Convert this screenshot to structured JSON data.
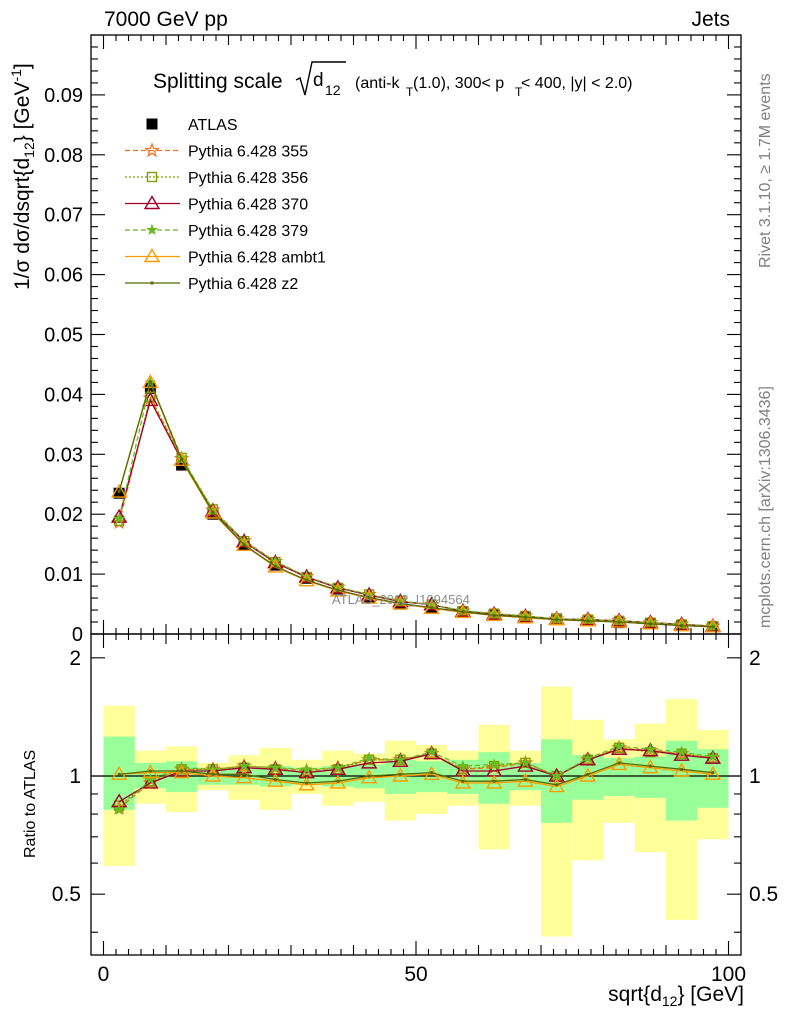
{
  "header": {
    "left": "7000 GeV pp",
    "right": "Jets"
  },
  "side_labels": {
    "rivet": "Rivet 3.1.10, ≥ 1.7M events",
    "mcplots": "mcplots.cern.ch [arXiv:1306.3436]"
  },
  "watermark": "ATLAS_2012_I1094564",
  "plot_title": {
    "main": "Splitting scale",
    "d_label": "d",
    "d_sub": "12",
    "details": "(anti-k",
    "details_sub": "T",
    "details_rest": "(1.0), 300< p",
    "details_sub2": "T",
    "details_end": " < 400, |y| < 2.0)"
  },
  "colors": {
    "band_inner": "#99ff99",
    "band_outer": "#ffff99"
  },
  "chart_data": [
    {
      "type": "line",
      "xlabel": "sqrt{d12} [GeV]",
      "ylabel": "1/σ dσ/dsqrt{d12} [GeV⁻¹]",
      "xlim": [
        -2,
        102
      ],
      "ylim": [
        0,
        0.1
      ],
      "x_ticks": [
        "0",
        "50",
        "100"
      ],
      "y_ticks": [
        "0",
        "0.01",
        "0.02",
        "0.03",
        "0.04",
        "0.05",
        "0.06",
        "0.07",
        "0.08",
        "0.09"
      ],
      "x": [
        2.5,
        7.5,
        12.5,
        17.5,
        22.5,
        27.5,
        32.5,
        37.5,
        42.5,
        47.5,
        52.5,
        57.5,
        62.5,
        67.5,
        72.5,
        77.5,
        82.5,
        87.5,
        92.5,
        97.5
      ],
      "series": [
        {
          "name": "ATLAS",
          "color": "#000000",
          "marker": "square-filled",
          "values": [
            0.0235,
            0.041,
            0.0282,
            0.02,
            0.0148,
            0.0115,
            0.0093,
            0.0075,
            0.006,
            0.005,
            0.0043,
            0.0037,
            0.0032,
            0.0028,
            0.0025,
            0.0022,
            0.0019,
            0.0017,
            0.0014,
            0.0012
          ]
        },
        {
          "name": "Pythia 6.428 355",
          "color": "#ff6b1a",
          "marker": "star",
          "dash": "5,3",
          "values": [
            0.0186,
            0.0394,
            0.0293,
            0.0207,
            0.0156,
            0.0121,
            0.0096,
            0.0078,
            0.0066,
            0.0055,
            0.0049,
            0.0038,
            0.0033,
            0.003,
            0.0025,
            0.0024,
            0.0022,
            0.0019,
            0.0016,
            0.0013
          ]
        },
        {
          "name": "Pythia 6.428 356",
          "color": "#7f9f00",
          "marker": "square-open",
          "dash": "2,2",
          "values": [
            0.0189,
            0.0396,
            0.0294,
            0.0208,
            0.0155,
            0.012,
            0.0095,
            0.0077,
            0.0066,
            0.0055,
            0.0049,
            0.0038,
            0.0034,
            0.003,
            0.0025,
            0.0024,
            0.0022,
            0.0019,
            0.0016,
            0.0013
          ]
        },
        {
          "name": "Pythia 6.428 370",
          "color": "#a0002a",
          "marker": "triangle-open",
          "dash": "",
          "values": [
            0.0195,
            0.039,
            0.029,
            0.0205,
            0.0154,
            0.0119,
            0.0095,
            0.0077,
            0.0065,
            0.0054,
            0.0049,
            0.0038,
            0.0033,
            0.0029,
            0.0025,
            0.0024,
            0.0022,
            0.0019,
            0.0016,
            0.0013
          ]
        },
        {
          "name": "Pythia 6.428 379",
          "color": "#66bb22",
          "marker": "star-small",
          "dash": "5,3",
          "values": [
            0.0192,
            0.042,
            0.0295,
            0.0207,
            0.0155,
            0.0121,
            0.0096,
            0.0078,
            0.0066,
            0.0055,
            0.0049,
            0.0039,
            0.0034,
            0.003,
            0.0025,
            0.0024,
            0.0022,
            0.0019,
            0.0016,
            0.0013
          ]
        },
        {
          "name": "Pythia 6.428 ambt1",
          "color": "#ff9900",
          "marker": "triangle-open",
          "dash": "",
          "values": [
            0.0237,
            0.042,
            0.029,
            0.0202,
            0.0148,
            0.0112,
            0.0089,
            0.0072,
            0.006,
            0.005,
            0.0043,
            0.0036,
            0.0031,
            0.0027,
            0.0024,
            0.0022,
            0.002,
            0.0017,
            0.0014,
            0.0012
          ]
        },
        {
          "name": "Pythia 6.428 z2",
          "color": "#556b00",
          "marker": "dot",
          "dash": "",
          "values": [
            0.0238,
            0.0421,
            0.0292,
            0.0203,
            0.0149,
            0.0113,
            0.009,
            0.0073,
            0.0061,
            0.0051,
            0.0044,
            0.0037,
            0.0031,
            0.0028,
            0.0024,
            0.0022,
            0.002,
            0.0017,
            0.0014,
            0.0012
          ]
        }
      ]
    },
    {
      "type": "line",
      "xlabel": "sqrt{d12} [GeV]",
      "ylabel": "Ratio to ATLAS",
      "xlim": [
        -2,
        102
      ],
      "ylim": [
        0.35,
        2.3
      ],
      "x_ticks": [
        "0",
        "50",
        "100"
      ],
      "y_ticks": [
        "0.5",
        "1",
        "2"
      ],
      "bins": [
        [
          0,
          5
        ],
        [
          5,
          10
        ],
        [
          10,
          15
        ],
        [
          15,
          20
        ],
        [
          20,
          25
        ],
        [
          25,
          30
        ],
        [
          30,
          35
        ],
        [
          35,
          40
        ],
        [
          40,
          45
        ],
        [
          45,
          50
        ],
        [
          50,
          55
        ],
        [
          55,
          60
        ],
        [
          60,
          65
        ],
        [
          65,
          70
        ],
        [
          70,
          75
        ],
        [
          75,
          80
        ],
        [
          80,
          85
        ],
        [
          85,
          90
        ],
        [
          90,
          95
        ],
        [
          95,
          100
        ]
      ],
      "band_inner": [
        [
          0.82,
          1.26
        ],
        [
          0.93,
          1.08
        ],
        [
          0.91,
          1.09
        ],
        [
          0.95,
          1.05
        ],
        [
          0.95,
          1.05
        ],
        [
          0.94,
          1.06
        ],
        [
          0.95,
          1.05
        ],
        [
          0.94,
          1.06
        ],
        [
          0.93,
          1.07
        ],
        [
          0.9,
          1.1
        ],
        [
          0.91,
          1.09
        ],
        [
          0.9,
          1.1
        ],
        [
          0.85,
          1.15
        ],
        [
          0.92,
          1.08
        ],
        [
          0.76,
          1.24
        ],
        [
          0.87,
          1.13
        ],
        [
          0.89,
          1.11
        ],
        [
          0.88,
          1.12
        ],
        [
          0.77,
          1.23
        ],
        [
          0.83,
          1.17
        ]
      ],
      "band_outer": [
        [
          0.59,
          1.51
        ],
        [
          0.85,
          1.16
        ],
        [
          0.81,
          1.19
        ],
        [
          0.92,
          1.08
        ],
        [
          0.87,
          1.13
        ],
        [
          0.82,
          1.18
        ],
        [
          0.9,
          1.1
        ],
        [
          0.84,
          1.16
        ],
        [
          0.86,
          1.14
        ],
        [
          0.77,
          1.23
        ],
        [
          0.8,
          1.2
        ],
        [
          0.84,
          1.16
        ],
        [
          0.65,
          1.35
        ],
        [
          0.84,
          1.16
        ],
        [
          0.39,
          1.69
        ],
        [
          0.61,
          1.39
        ],
        [
          0.76,
          1.24
        ],
        [
          0.64,
          1.36
        ],
        [
          0.43,
          1.57
        ],
        [
          0.69,
          1.31
        ]
      ],
      "series": [
        {
          "name": "Pythia 6.428 355",
          "color": "#ff6b1a",
          "marker": "star",
          "dash": "5,3",
          "values": [
            0.83,
            0.96,
            1.04,
            1.04,
            1.06,
            1.05,
            1.03,
            1.05,
            1.1,
            1.1,
            1.14,
            1.04,
            1.05,
            1.08,
            1.0,
            1.1,
            1.18,
            1.16,
            1.14,
            1.11
          ]
        },
        {
          "name": "Pythia 6.428 356",
          "color": "#7f9f00",
          "marker": "square-open",
          "dash": "2,2",
          "values": [
            0.84,
            0.97,
            1.04,
            1.04,
            1.05,
            1.04,
            1.02,
            1.04,
            1.1,
            1.1,
            1.14,
            1.04,
            1.06,
            1.08,
            1.0,
            1.1,
            1.18,
            1.15,
            1.14,
            1.11
          ]
        },
        {
          "name": "Pythia 6.428 370",
          "color": "#a0002a",
          "marker": "triangle-open",
          "dash": "",
          "values": [
            0.86,
            0.96,
            1.03,
            1.03,
            1.05,
            1.04,
            1.02,
            1.04,
            1.08,
            1.09,
            1.14,
            1.03,
            1.03,
            1.06,
            1.0,
            1.1,
            1.17,
            1.16,
            1.13,
            1.11
          ]
        },
        {
          "name": "Pythia 6.428 379",
          "color": "#66bb22",
          "marker": "star-small",
          "dash": "5,3",
          "values": [
            0.82,
            0.98,
            1.05,
            1.04,
            1.06,
            1.05,
            1.04,
            1.05,
            1.11,
            1.1,
            1.15,
            1.06,
            1.07,
            1.08,
            1.0,
            1.11,
            1.19,
            1.17,
            1.15,
            1.12
          ]
        },
        {
          "name": "Pythia 6.428 ambt1",
          "color": "#ff9900",
          "marker": "triangle-open",
          "dash": "",
          "values": [
            1.01,
            1.02,
            1.02,
            1.0,
            0.99,
            0.97,
            0.95,
            0.96,
            0.99,
            1.0,
            1.01,
            0.96,
            0.96,
            0.97,
            0.94,
            1.0,
            1.07,
            1.05,
            1.03,
            1.01
          ]
        },
        {
          "name": "Pythia 6.428 z2",
          "color": "#556b00",
          "marker": "dot",
          "dash": "",
          "values": [
            1.01,
            1.03,
            1.03,
            1.01,
            1.01,
            0.98,
            0.96,
            0.97,
            1.0,
            1.01,
            1.02,
            0.97,
            0.97,
            0.98,
            0.95,
            1.01,
            1.08,
            1.06,
            1.04,
            1.02
          ]
        }
      ]
    }
  ]
}
